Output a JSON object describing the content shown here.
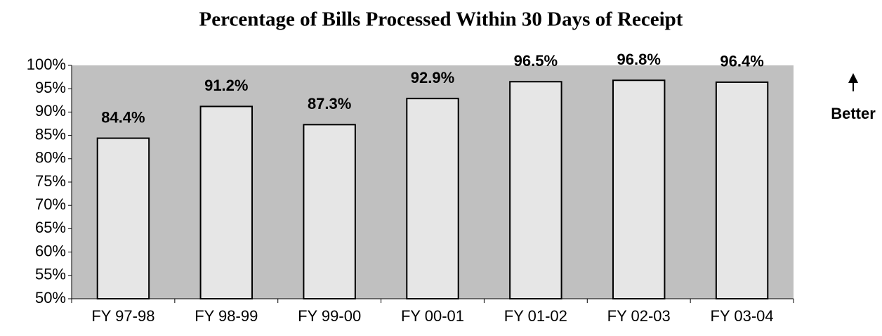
{
  "chart_data": {
    "type": "bar",
    "title": "Percentage of Bills Processed Within 30 Days of Receipt",
    "categories": [
      "FY 97-98",
      "FY 98-99",
      "FY 99-00",
      "FY 00-01",
      "FY 01-02",
      "FY 02-03",
      "FY 03-04"
    ],
    "values": [
      84.4,
      91.2,
      87.3,
      92.9,
      96.5,
      96.8,
      96.4
    ],
    "value_labels": [
      "84.4%",
      "91.2%",
      "87.3%",
      "92.9%",
      "96.5%",
      "96.8%",
      "96.4%"
    ],
    "color": "#e6e6e6",
    "plot_background": "#c0c0c0",
    "ylim": [
      50,
      100
    ],
    "yticks": [
      {
        "value": 50,
        "label": "50%"
      },
      {
        "value": 55,
        "label": "55%"
      },
      {
        "value": 60,
        "label": "60%"
      },
      {
        "value": 65,
        "label": "65%"
      },
      {
        "value": 70,
        "label": "70%"
      },
      {
        "value": 75,
        "label": "75%"
      },
      {
        "value": 80,
        "label": "80%"
      },
      {
        "value": 85,
        "label": "85%"
      },
      {
        "value": 90,
        "label": "90%"
      },
      {
        "value": 95,
        "label": "95%"
      },
      {
        "value": 100,
        "label": "100%"
      }
    ],
    "annotation": "Better",
    "grid": false
  }
}
